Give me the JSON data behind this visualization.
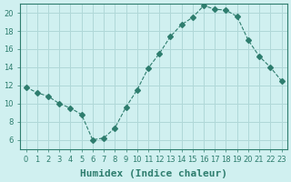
{
  "x": [
    0,
    1,
    2,
    3,
    4,
    5,
    6,
    7,
    8,
    9,
    10,
    11,
    12,
    13,
    14,
    15,
    16,
    17,
    18,
    19,
    20,
    21,
    22,
    23
  ],
  "y": [
    11.8,
    11.2,
    10.8,
    10.0,
    9.5,
    8.8,
    6.0,
    6.2,
    7.3,
    9.6,
    11.5,
    13.9,
    15.5,
    17.4,
    18.7,
    19.5,
    20.8,
    20.4,
    20.3,
    19.6,
    17.0,
    15.2,
    14.0,
    12.5
  ],
  "line_color": "#2e7d6e",
  "marker": "D",
  "marker_size": 3,
  "line_width": 0.8,
  "bg_color": "#d0f0f0",
  "grid_color": "#b0d8d8",
  "xlabel": "Humidex (Indice chaleur)",
  "xlim": [
    -0.5,
    23.5
  ],
  "ylim": [
    5,
    21
  ],
  "yticks": [
    6,
    8,
    10,
    12,
    14,
    16,
    18,
    20
  ],
  "xticks": [
    0,
    1,
    2,
    3,
    4,
    5,
    6,
    7,
    8,
    9,
    10,
    11,
    12,
    13,
    14,
    15,
    16,
    17,
    18,
    19,
    20,
    21,
    22,
    23
  ],
  "tick_color": "#2e7d6e",
  "label_color": "#2e7d6e",
  "xlabel_fontsize": 8,
  "tick_fontsize": 6
}
